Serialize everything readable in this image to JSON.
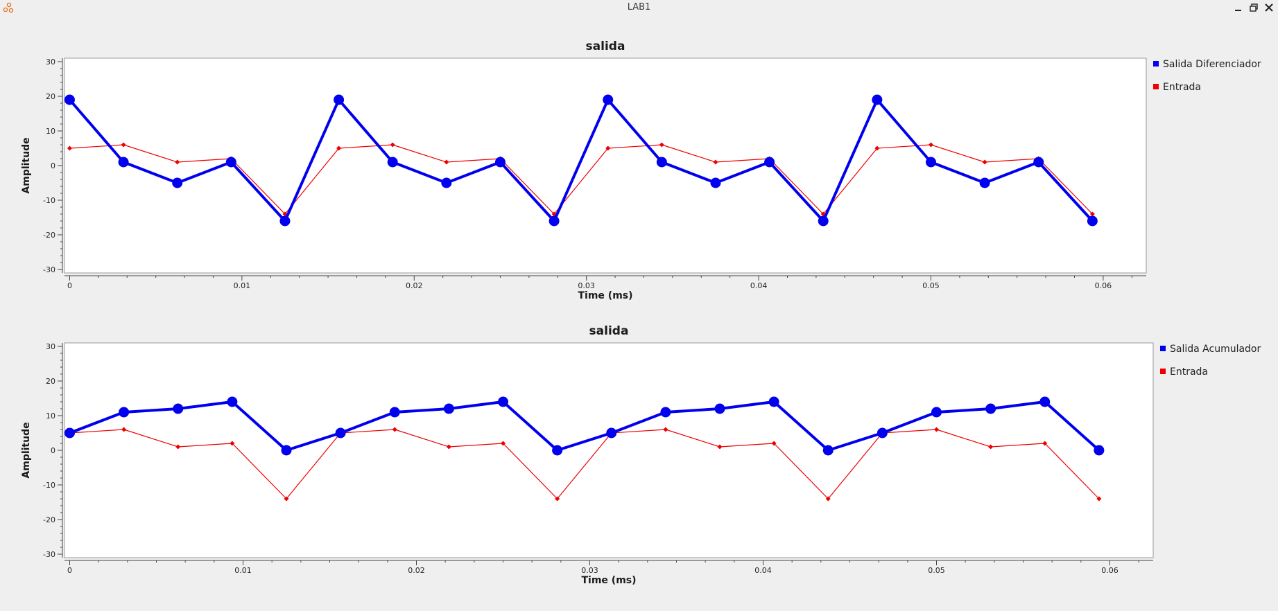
{
  "window": {
    "title": "LAB1",
    "buttons": [
      "minimize",
      "maximize",
      "close"
    ]
  },
  "colors": {
    "series_main": "#0000ee",
    "series_input": "#ee0000",
    "background": "#efefef",
    "plot_bg": "#ffffff"
  },
  "chart_data": [
    {
      "type": "line",
      "title": "salida",
      "xlabel": "Time (ms)",
      "ylabel": "Amplitude",
      "xlim": [
        -0.0003,
        0.0625
      ],
      "ylim": [
        -31,
        31
      ],
      "x_ticks": [
        0,
        0.01,
        0.02,
        0.03,
        0.04,
        0.05,
        0.06
      ],
      "x_tick_labels": [
        "0",
        "0.01",
        "0.02",
        "0.03",
        "0.04",
        "0.05",
        "0.06"
      ],
      "y_ticks": [
        30,
        20,
        10,
        0,
        -10,
        -20,
        -30
      ],
      "y_tick_labels": [
        "30",
        "20",
        "10",
        "0",
        "-10",
        "-20",
        "-30"
      ],
      "x": [
        0,
        0.003125,
        0.00625,
        0.009375,
        0.0125,
        0.015625,
        0.01875,
        0.021875,
        0.025,
        0.028125,
        0.03125,
        0.034375,
        0.0375,
        0.040625,
        0.04375,
        0.046875,
        0.05,
        0.053125,
        0.05625,
        0.059375
      ],
      "series": [
        {
          "name": "Salida Diferenciador",
          "color": "#0000ee",
          "marker": "circle",
          "values": [
            19,
            1,
            -5,
            1,
            -16,
            19,
            1,
            -5,
            1,
            -16,
            19,
            1,
            -5,
            1,
            -16,
            19,
            1,
            -5,
            1,
            -16
          ]
        },
        {
          "name": "Entrada",
          "color": "#ee0000",
          "marker": "diamond",
          "values": [
            5,
            6,
            1,
            2,
            -14,
            5,
            6,
            1,
            2,
            -14,
            5,
            6,
            1,
            2,
            -14,
            5,
            6,
            1,
            2,
            -14
          ]
        }
      ],
      "legend": "right"
    },
    {
      "type": "line",
      "title": "salida",
      "xlabel": "Time (ms)",
      "ylabel": "Amplitude",
      "xlim": [
        -0.0003,
        0.0625
      ],
      "ylim": [
        -31,
        31
      ],
      "x_ticks": [
        0,
        0.01,
        0.02,
        0.03,
        0.04,
        0.05,
        0.06
      ],
      "x_tick_labels": [
        "0",
        "0.01",
        "0.02",
        "0.03",
        "0.04",
        "0.05",
        "0.06"
      ],
      "y_ticks": [
        30,
        20,
        10,
        0,
        -10,
        -20,
        -30
      ],
      "y_tick_labels": [
        "30",
        "20",
        "10",
        "0",
        "-10",
        "-20",
        "-30"
      ],
      "x": [
        0,
        0.003125,
        0.00625,
        0.009375,
        0.0125,
        0.015625,
        0.01875,
        0.021875,
        0.025,
        0.028125,
        0.03125,
        0.034375,
        0.0375,
        0.040625,
        0.04375,
        0.046875,
        0.05,
        0.053125,
        0.05625,
        0.059375
      ],
      "series": [
        {
          "name": "Salida Acumulador",
          "color": "#0000ee",
          "marker": "circle",
          "values": [
            5,
            11,
            12,
            14,
            0,
            5,
            11,
            12,
            14,
            0,
            5,
            11,
            12,
            14,
            0,
            5,
            11,
            12,
            14,
            0
          ]
        },
        {
          "name": "Entrada",
          "color": "#ee0000",
          "marker": "diamond",
          "values": [
            5,
            6,
            1,
            2,
            -14,
            5,
            6,
            1,
            2,
            -14,
            5,
            6,
            1,
            2,
            -14,
            5,
            6,
            1,
            2,
            -14
          ]
        }
      ],
      "legend": "right"
    }
  ]
}
